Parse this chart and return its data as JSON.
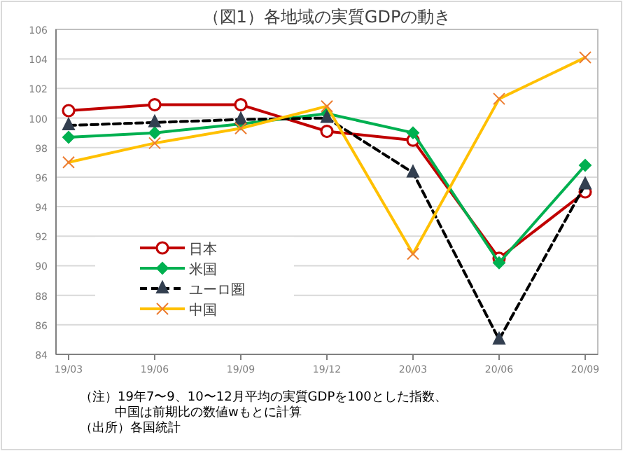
{
  "chart_data": {
    "type": "line",
    "title": "（図1）各地域の実質GDPの動き",
    "categories": [
      "19/03",
      "19/06",
      "19/09",
      "19/12",
      "20/03",
      "20/06",
      "20/09"
    ],
    "series": [
      {
        "name": "日本",
        "color": "#c00000",
        "marker": "circle",
        "line_style": "solid",
        "values": [
          100.5,
          100.9,
          100.9,
          99.1,
          98.5,
          90.5,
          95.0
        ]
      },
      {
        "name": "米国",
        "color": "#00b050",
        "marker": "diamond",
        "line_style": "solid",
        "values": [
          98.7,
          99.0,
          99.6,
          100.3,
          99.0,
          90.2,
          96.8
        ]
      },
      {
        "name": "ユーロ圏",
        "color": "#000000",
        "marker": "triangle",
        "line_style": "dashed",
        "values": [
          99.5,
          99.7,
          99.9,
          100.0,
          96.3,
          85.0,
          95.5
        ]
      },
      {
        "name": "中国",
        "color": "#ffc000",
        "marker": "cross",
        "line_style": "solid",
        "values": [
          97.0,
          98.3,
          99.3,
          100.8,
          90.8,
          101.3,
          104.1
        ]
      }
    ],
    "ylim": [
      84,
      106
    ],
    "yticks": [
      84,
      86,
      88,
      90,
      92,
      94,
      96,
      98,
      100,
      102,
      104,
      106
    ],
    "grid": "y",
    "legend": "bottom left",
    "annotations": [
      "（注）19年7〜9、10〜12月平均の実質GDPを100とした指数、",
      "中国は前期比の数値wもとに計算",
      "（出所）各国統計"
    ]
  }
}
